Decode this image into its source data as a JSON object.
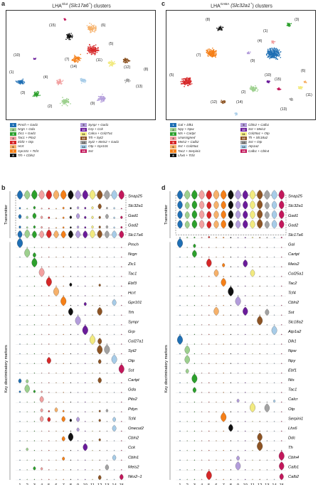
{
  "colors": [
    "#1f6fb4",
    "#9dd08e",
    "#2ca02c",
    "#f2a0a0",
    "#d62728",
    "#f6b16a",
    "#f57f17",
    "#111111",
    "#b39ddb",
    "#6a1b9a",
    "#f2ea7f",
    "#8d5424",
    "#a3a3a3",
    "#a7cce8",
    "#c2185b"
  ],
  "panel_a": {
    "letter": "a",
    "title_prefix": "LHA",
    "title_sup": "Glut",
    "title_rest": " (Slc17a6",
    "title_sup2": "+",
    "title_end": ") clusters",
    "cluster_labels": [
      "(1)",
      "(2)",
      "(3)",
      "(4)",
      "(5)",
      "(6)",
      "(7)",
      "(8)",
      "(9)",
      "(10)",
      "(11)",
      "(12)",
      "(13)",
      "(14)",
      "(15)"
    ],
    "legend_left": [
      {
        "n": "1",
        "label": "Pmch + Gad1"
      },
      {
        "n": "2",
        "label": "Nrgn + Gda"
      },
      {
        "n": "3",
        "label": "Zic1 + Gad1"
      },
      {
        "n": "4",
        "label": "Tac1 + Pitx2"
      },
      {
        "n": "5",
        "label": "Ebf3 + Otp"
      },
      {
        "n": "6",
        "label": "Hcrt"
      },
      {
        "n": "7",
        "label": "Gpr101 + Tcf4"
      },
      {
        "n": "8",
        "label": "Trh + Cbln2"
      }
    ],
    "legend_right": [
      {
        "n": "9",
        "label": "Synpr + Gad1"
      },
      {
        "n": "10",
        "label": "Grp + Cck"
      },
      {
        "n": "11",
        "label": "Calca + Col27a1"
      },
      {
        "n": "12",
        "label": "Trh + Syt2"
      },
      {
        "n": "13",
        "label": "Syt2 + Meis2 + Gad1"
      },
      {
        "n": "14",
        "label": "Otp + Gpr101"
      },
      {
        "n": "15",
        "label": "Sst"
      }
    ]
  },
  "panel_b": {
    "letter": "b",
    "transmitter_label": "Transmitter",
    "markers_label": "Key discriminatory markers",
    "xlabel": "Clusters",
    "transmitter_genes": [
      "Snap25",
      "Slc32a1",
      "Gad1",
      "Gad2",
      "Slc17a6"
    ],
    "marker_genes": [
      "Pmch",
      "Nrgn",
      "Zic1",
      "Tac1",
      "Ebf3",
      "Hcrt",
      "Gpr101",
      "Trh",
      "Synpr",
      "Grp",
      "Col27a1",
      "Syt2",
      "Otp",
      "Sst",
      "Cartpt",
      "Gda",
      "Pitx2",
      "Pdyn",
      "Tcf4",
      "Onecut2",
      "Cbln2",
      "Cck",
      "Cbln1",
      "Meis2",
      "Nkx2–1"
    ],
    "ticks": [
      "1",
      "2",
      "3",
      "4",
      "5",
      "6",
      "7",
      "8",
      "9",
      "10",
      "11",
      "12",
      "13",
      "14",
      "15"
    ]
  },
  "panel_c": {
    "letter": "c",
    "title_prefix": "LHA",
    "title_sup": "GABA",
    "title_rest": " (Slc32a1",
    "title_sup2": "+",
    "title_end": ") clusters",
    "cluster_labels": [
      "(1)",
      "(2)",
      "(3)",
      "(4)",
      "(5)",
      "(6)",
      "(7)",
      "(8)",
      "(9)",
      "(10)",
      "(11)",
      "(12)",
      "(13)",
      "(14)",
      "(15)"
    ],
    "legend_left": [
      {
        "n": "1",
        "label": "Gal + Dlk1"
      },
      {
        "n": "2",
        "label": "Npy + Npw"
      },
      {
        "n": "3",
        "label": "Nts + Cartpt"
      },
      {
        "n": "4",
        "label": "Unassigned"
      },
      {
        "n": "5",
        "label": "Meis2 + Calb2"
      },
      {
        "n": "6",
        "label": "Sst + Col25a1"
      },
      {
        "n": "7",
        "label": "Tac2 + Serpini1"
      },
      {
        "n": "8",
        "label": "Lhx6 + Tcf4"
      }
    ],
    "legend_right": [
      {
        "n": "9",
        "label": "Cbln2 + Calb1"
      },
      {
        "n": "10",
        "label": "Sst + Meis2"
      },
      {
        "n": "11",
        "label": "Col25a1 + Otp"
      },
      {
        "n": "12",
        "label": "Th + Slc18a2"
      },
      {
        "n": "13",
        "label": "Sst + Otp"
      },
      {
        "n": "14",
        "label": "Atp1a2"
      },
      {
        "n": "15",
        "label": "Calb1 + Cbln4"
      }
    ]
  },
  "panel_d": {
    "letter": "d",
    "transmitter_label": "Transmitter",
    "markers_label": "Key discriminatory markers",
    "xlabel": "Clusters",
    "transmitter_genes": [
      "Snap25",
      "Slc32a1",
      "Gad1",
      "Gad2",
      "Slc17a6"
    ],
    "marker_genes": [
      "Gal",
      "Cartpt",
      "Meis2",
      "Col25a1",
      "Tac2",
      "Tcf4",
      "Cbln2",
      "Sst",
      "Slc18a2",
      "Atp1a2",
      "Dlk1",
      "Npw",
      "Npy",
      "Ebf1",
      "Nts",
      "Tac1",
      "Calcr",
      "Otp",
      "Serpini1",
      "Lhx6",
      "Ddc",
      "Th",
      "Cbln4",
      "Calb1",
      "Calb2"
    ],
    "ticks": [
      "1",
      "2",
      "3",
      "4",
      "5",
      "6",
      "7",
      "8",
      "9",
      "10",
      "11",
      "12",
      "13",
      "14",
      "15"
    ]
  }
}
